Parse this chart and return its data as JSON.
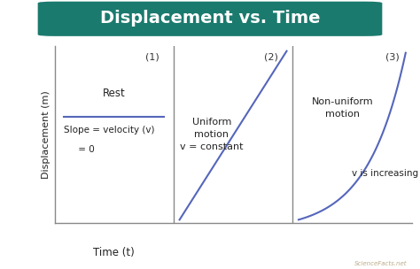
{
  "title": "Displacement vs. Time",
  "title_bg_color": "#1a7a6e",
  "title_text_color": "#ffffff",
  "bg_color": "#ffffff",
  "line_color": "#5566bb",
  "axis_color": "#888888",
  "sep_color": "#888888",
  "ylabel": "Displacement (m)",
  "xlabel": "Time (t)",
  "panel_labels": [
    "(1)",
    "(2)",
    "(3)"
  ],
  "watermark": "ScienceFacts.net"
}
